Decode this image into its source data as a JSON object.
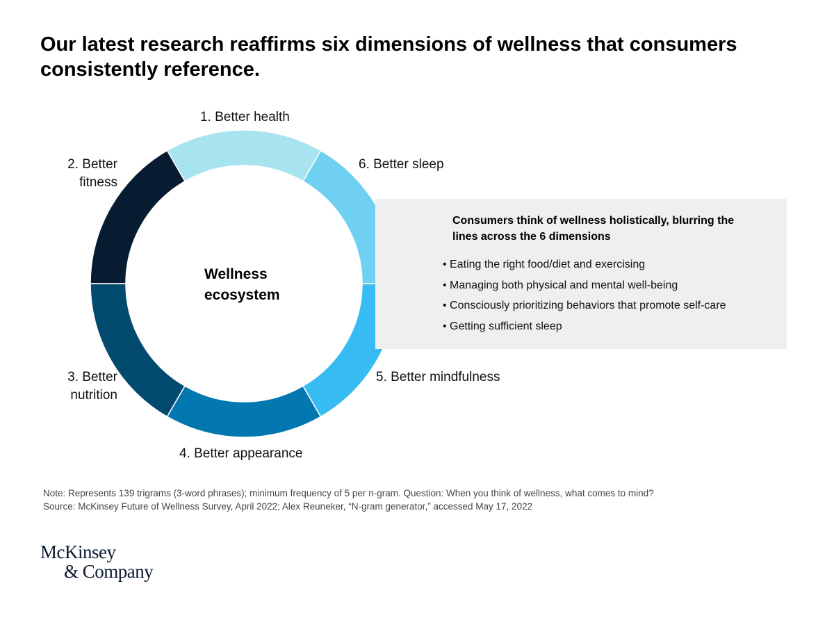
{
  "title_lines": [
    "Our latest research reaffirms six dimensions of wellness that consumers",
    "consistently reference."
  ],
  "center_label_lines": [
    "Wellness",
    "ecosystem"
  ],
  "segments": [
    {
      "label_lines": [
        "1. Better health"
      ],
      "color": "#a8e4ef"
    },
    {
      "label_lines": [
        "2. Better",
        "fitness"
      ],
      "color": "#071c30"
    },
    {
      "label_lines": [
        "3. Better",
        "nutrition"
      ],
      "color": "#034b6e"
    },
    {
      "label_lines": [
        "4. Better appearance"
      ],
      "color": "#0378b0"
    },
    {
      "label_lines": [
        "5. Better mindfulness"
      ],
      "color": "#36bcf2"
    },
    {
      "label_lines": [
        "6. Better sleep"
      ],
      "color": "#6fd0f1"
    }
  ],
  "panel": {
    "heading_lines": [
      "Consumers think of wellness holistically, blurring the",
      "lines across the 6 dimensions"
    ],
    "bullets": [
      "Eating the right food/diet and exercising",
      "Managing both physical and mental well-being",
      "Consciously prioritizing behaviors that promote self-care",
      "Getting sufficient sleep"
    ]
  },
  "notes": {
    "note": "Note: Represents 139 trigrams (3-word phrases); minimum frequency of 5 per n-gram. Question: When you think of wellness, what comes to mind?",
    "source": "Source: McKinsey Future of Wellness Survey, April 2022; Alex Reuneker, “N-gram generator,” accessed May 17, 2022"
  },
  "logo_lines": [
    "McKinsey",
    "& Company"
  ]
}
